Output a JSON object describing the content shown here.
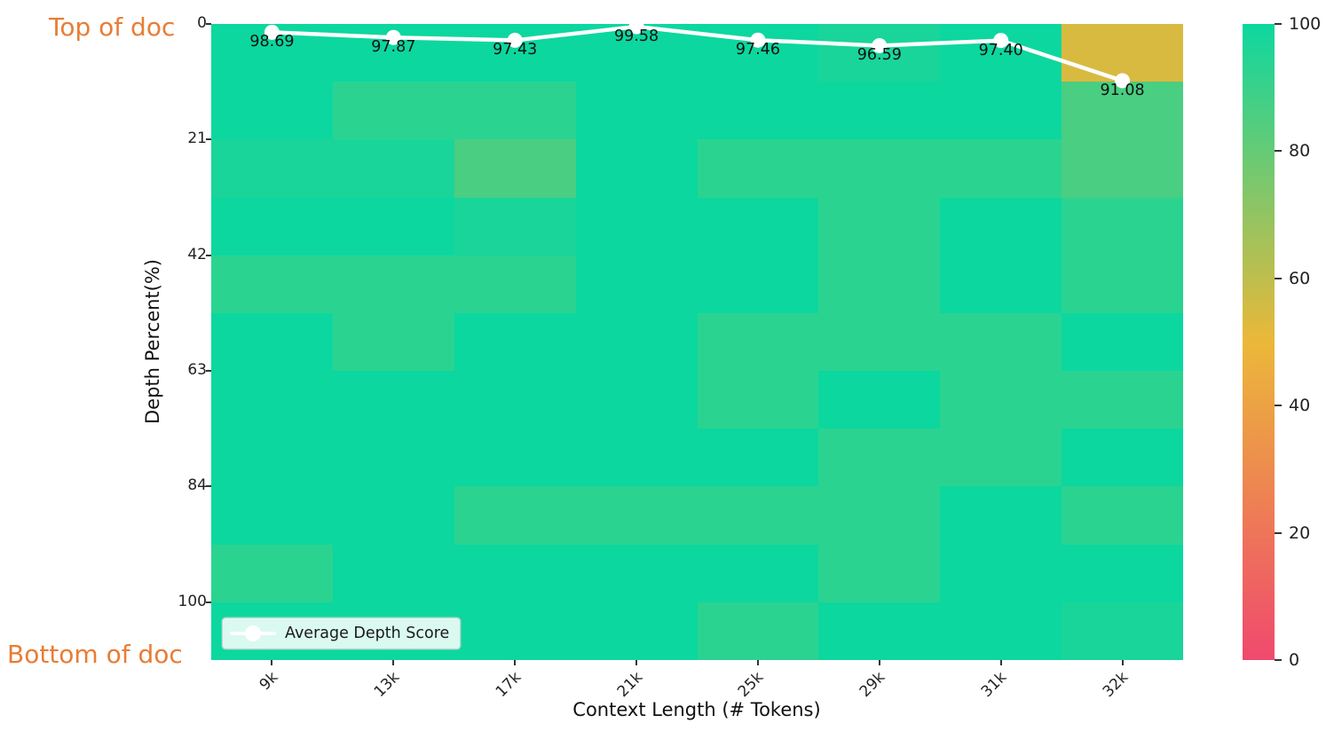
{
  "annotations": {
    "top": "Top of doc",
    "bottom": "Bottom of doc",
    "color": "#E87D35"
  },
  "chart_data": {
    "type": "heatmap",
    "xlabel": "Context Length (# Tokens)",
    "ylabel": "Depth Percent(%)",
    "x_ticklabels": [
      "9k",
      "13k",
      "17k",
      "21k",
      "25k",
      "29k",
      "31k",
      "32k"
    ],
    "y_ticklabels": [
      "0",
      "21",
      "42",
      "63",
      "84",
      "100"
    ],
    "y_tick_row_index": [
      0,
      2,
      4,
      6,
      8,
      10
    ],
    "depth_percents": [
      0,
      11,
      21,
      32,
      42,
      53,
      63,
      74,
      84,
      95,
      100
    ],
    "grid": false,
    "values": [
      [
        100,
        100,
        100,
        100,
        100,
        97,
        100,
        54
      ],
      [
        100,
        93,
        93,
        100,
        100,
        100,
        100,
        86
      ],
      [
        97,
        97,
        86,
        100,
        93,
        93,
        93,
        86
      ],
      [
        100,
        100,
        97,
        100,
        100,
        93,
        100,
        93
      ],
      [
        93,
        93,
        93,
        100,
        100,
        93,
        100,
        93
      ],
      [
        100,
        93,
        100,
        100,
        93,
        93,
        93,
        100
      ],
      [
        100,
        100,
        100,
        100,
        93,
        100,
        93,
        93
      ],
      [
        100,
        100,
        100,
        100,
        100,
        93,
        93,
        100
      ],
      [
        100,
        100,
        93,
        93,
        93,
        93,
        100,
        93
      ],
      [
        93,
        100,
        100,
        100,
        100,
        93,
        100,
        100
      ],
      [
        100,
        100,
        100,
        100,
        93,
        100,
        100,
        97
      ]
    ],
    "colormap_stops": [
      {
        "value": 0,
        "color": "#F0496E"
      },
      {
        "value": 50,
        "color": "#EBB839"
      },
      {
        "value": 100,
        "color": "#0CD79F"
      }
    ],
    "colorbar": {
      "ticks": [
        "100",
        "80",
        "60",
        "40",
        "20",
        "0"
      ],
      "range": [
        0,
        100
      ],
      "position": "right"
    },
    "line_series": {
      "name": "Average Depth Score",
      "color": "#ffffff",
      "values": [
        98.69,
        97.87,
        97.43,
        99.58,
        97.46,
        96.59,
        97.4,
        91.08
      ],
      "labels": [
        "98.69",
        "97.87",
        "97.43",
        "99.58",
        "97.46",
        "96.59",
        "97.40",
        "91.08"
      ]
    },
    "legend": {
      "label": "Average Depth Score",
      "position": "lower left"
    },
    "ylim_depth": [
      0,
      100
    ]
  }
}
